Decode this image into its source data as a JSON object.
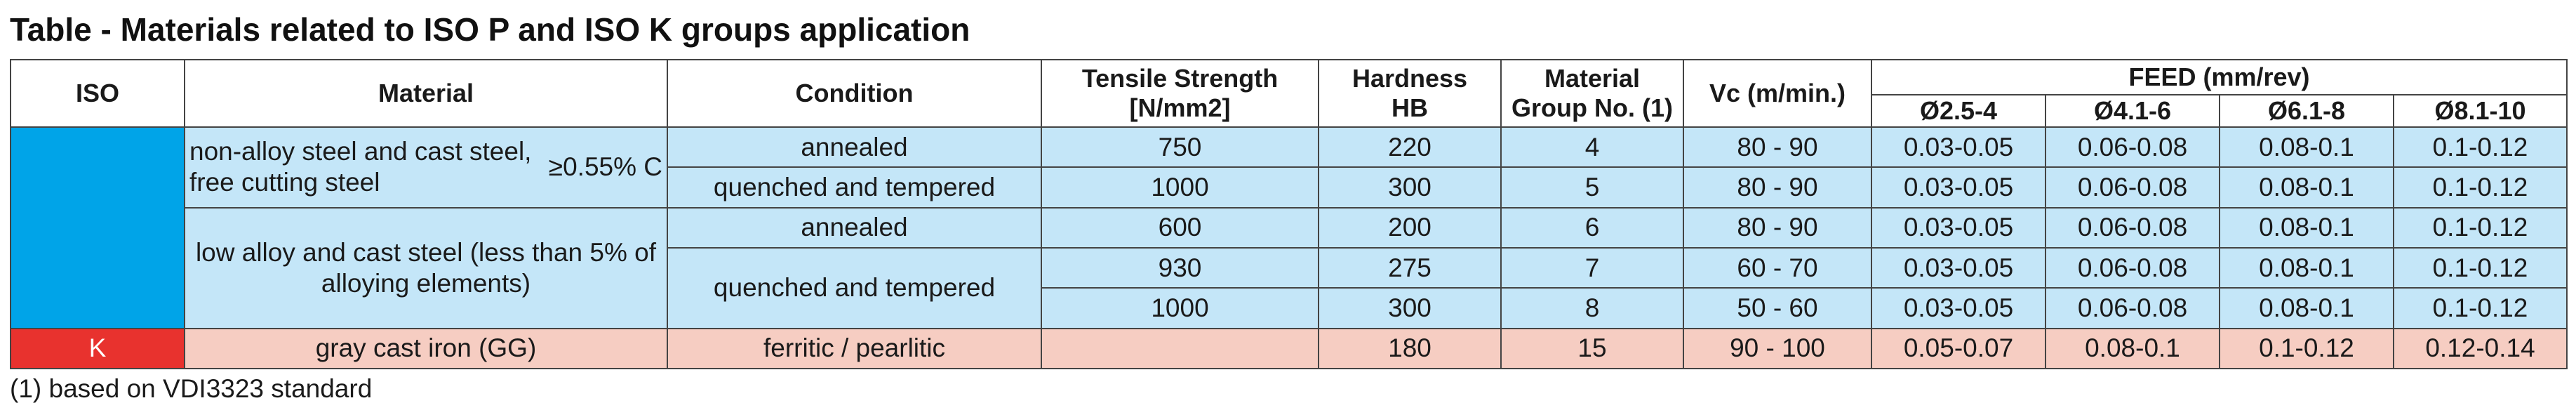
{
  "title": "Table  - Materials related to ISO P and ISO K groups application",
  "colors": {
    "iso_p": "#00a4e8",
    "iso_k": "#e8322e",
    "row_blue": "#c4e6f8",
    "row_pink": "#f6cdc2"
  },
  "headers": {
    "iso": "ISO",
    "material": "Material",
    "condition": "Condition",
    "tensile_line1": "Tensile Strength",
    "tensile_line2": "[N/mm2]",
    "hardness_line1": "Hardness",
    "hardness_line2": "HB",
    "group_line1": "Material",
    "group_line2": "Group No. (1)",
    "vc": "Vc (m/min.)",
    "feed": "FEED (mm/rev)",
    "feed_cols": [
      "Ø2.5-4",
      "Ø4.1-6",
      "Ø6.1-8",
      "Ø8.1-10"
    ]
  },
  "rows": [
    {
      "iso": "",
      "material_a": "non-alloy steel and cast steel, free cutting steel",
      "material_a_suffix": "≥0.55% C",
      "condition": "annealed",
      "tensile": "750",
      "hardness": "220",
      "group": "4",
      "vc": "80 - 90",
      "feed": [
        "0.03-0.05",
        "0.06-0.08",
        "0.08-0.1",
        "0.1-0.12"
      ]
    },
    {
      "condition": "quenched and tempered",
      "tensile": "1000",
      "hardness": "300",
      "group": "5",
      "vc": "80 - 90",
      "feed": [
        "0.03-0.05",
        "0.06-0.08",
        "0.08-0.1",
        "0.1-0.12"
      ]
    },
    {
      "material_b": "low alloy and cast steel (less than 5% of alloying elements)",
      "condition": "annealed",
      "tensile": "600",
      "hardness": "200",
      "group": "6",
      "vc": "80 - 90",
      "feed": [
        "0.03-0.05",
        "0.06-0.08",
        "0.08-0.1",
        "0.1-0.12"
      ]
    },
    {
      "condition": "quenched and tempered",
      "tensile": "930",
      "hardness": "275",
      "group": "7",
      "vc": "60 - 70",
      "feed": [
        "0.03-0.05",
        "0.06-0.08",
        "0.08-0.1",
        "0.1-0.12"
      ]
    },
    {
      "tensile": "1000",
      "hardness": "300",
      "group": "8",
      "vc": "50 - 60",
      "feed": [
        "0.03-0.05",
        "0.06-0.08",
        "0.08-0.1",
        "0.1-0.12"
      ]
    },
    {
      "iso": "K",
      "material": "gray cast iron (GG)",
      "condition": "ferritic / pearlitic",
      "tensile": "",
      "hardness": "180",
      "group": "15",
      "vc": "90 - 100",
      "feed": [
        "0.05-0.07",
        "0.08-0.1",
        "0.1-0.12",
        "0.12-0.14"
      ]
    }
  ],
  "footnote": "(1) based on  VDI3323 standard"
}
